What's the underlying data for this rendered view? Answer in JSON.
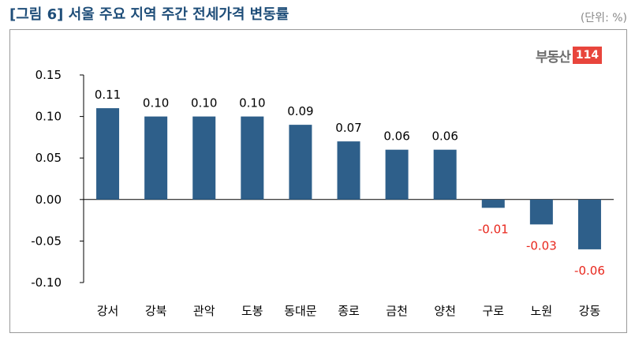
{
  "header": {
    "title": "[그림 6] 서울 주요 지역 주간 전세가격 변동률",
    "unit": "(단위: %)"
  },
  "logo": {
    "text": "부동산",
    "badge": "114"
  },
  "colors": {
    "bar": "#2e5f8a",
    "positive_label": "#000000",
    "negative_label": "#e8261c",
    "axis": "#000000"
  },
  "chart_data": {
    "type": "bar",
    "title": "",
    "xlabel": "",
    "ylabel": "",
    "ylim": [
      -0.1,
      0.15
    ],
    "yticks": [
      "0.15",
      "0.10",
      "0.05",
      "0.00",
      "-0.05",
      "-0.10"
    ],
    "ytick_values": [
      0.15,
      0.1,
      0.05,
      0.0,
      -0.05,
      -0.1
    ],
    "categories": [
      "강서",
      "강북",
      "관악",
      "도봉",
      "동대문",
      "종로",
      "금천",
      "양천",
      "구로",
      "노원",
      "강동"
    ],
    "values": [
      0.11,
      0.1,
      0.1,
      0.1,
      0.09,
      0.07,
      0.06,
      0.06,
      -0.01,
      -0.03,
      -0.06
    ],
    "labels": [
      "0.11",
      "0.10",
      "0.10",
      "0.10",
      "0.09",
      "0.07",
      "0.06",
      "0.06",
      "-0.01",
      "-0.03",
      "-0.06"
    ],
    "grid": false,
    "legend": "none"
  }
}
